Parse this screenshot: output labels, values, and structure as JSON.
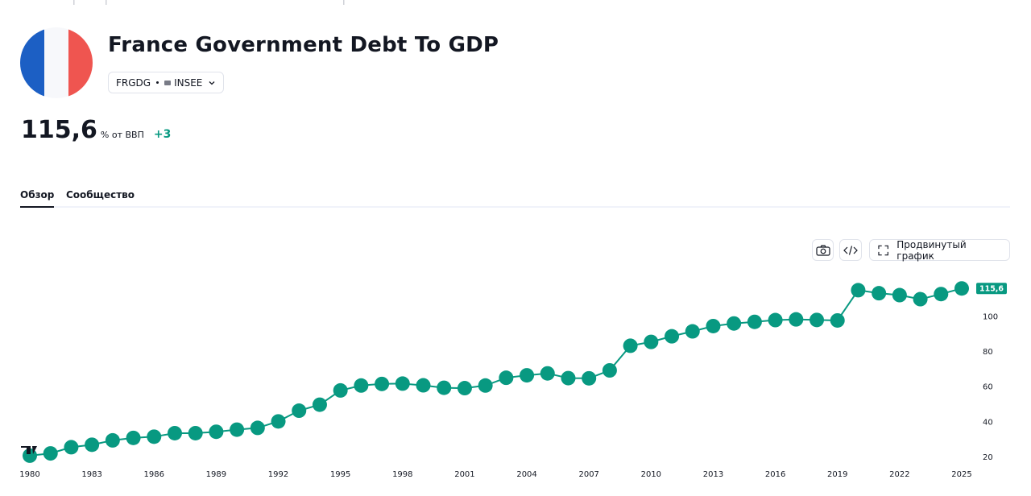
{
  "header": {
    "title": "France Government Debt To GDP",
    "symbol": "FRGDG",
    "source": "INSEE",
    "flag_colors": [
      "#1c5fc4",
      "#f7f8fb",
      "#ef5550"
    ]
  },
  "quote": {
    "value": "115,6",
    "unit": "% от ВВП",
    "change": "+3",
    "change_color": "#089981"
  },
  "tabs": [
    {
      "label": "Обзор",
      "active": true
    },
    {
      "label": "Сообщество",
      "active": false
    }
  ],
  "toolbar": {
    "camera_icon": "camera-icon",
    "embed_icon": "code-icon",
    "advanced_label": "Продвинутый график",
    "advanced_icon": "fullscreen-icon"
  },
  "chart_data": {
    "type": "line",
    "marker": "circle",
    "color": "#089981",
    "x": [
      1980,
      1981,
      1982,
      1983,
      1984,
      1985,
      1986,
      1987,
      1988,
      1989,
      1990,
      1991,
      1992,
      1993,
      1994,
      1995,
      1996,
      1997,
      1998,
      1999,
      2000,
      2001,
      2002,
      2003,
      2004,
      2005,
      2006,
      2007,
      2008,
      2009,
      2010,
      2011,
      2012,
      2013,
      2014,
      2015,
      2016,
      2017,
      2018,
      2019,
      2020,
      2021,
      2022,
      2023,
      2024,
      2025
    ],
    "y": [
      20.5,
      21.8,
      25.3,
      26.7,
      29.2,
      30.6,
      31.3,
      33.3,
      33.3,
      34.1,
      35.3,
      36.3,
      40.0,
      46.1,
      49.5,
      57.6,
      60.4,
      61.3,
      61.5,
      60.5,
      59.1,
      58.9,
      60.4,
      64.8,
      66.2,
      67.3,
      64.6,
      64.5,
      69.0,
      83.0,
      85.2,
      88.4,
      91.2,
      94.2,
      95.7,
      96.6,
      97.6,
      98.0,
      97.7,
      97.4,
      114.6,
      112.9,
      111.8,
      109.5,
      112.4,
      115.6
    ],
    "x_ticks": [
      "1980",
      "1983",
      "1986",
      "1989",
      "1992",
      "1995",
      "1998",
      "2001",
      "2004",
      "2007",
      "2010",
      "2013",
      "2016",
      "2019",
      "2022",
      "2025"
    ],
    "y_ticks": [
      "20",
      "40",
      "60",
      "80",
      "100"
    ],
    "ylim": [
      20,
      118
    ],
    "last_value_label": "115,6"
  }
}
